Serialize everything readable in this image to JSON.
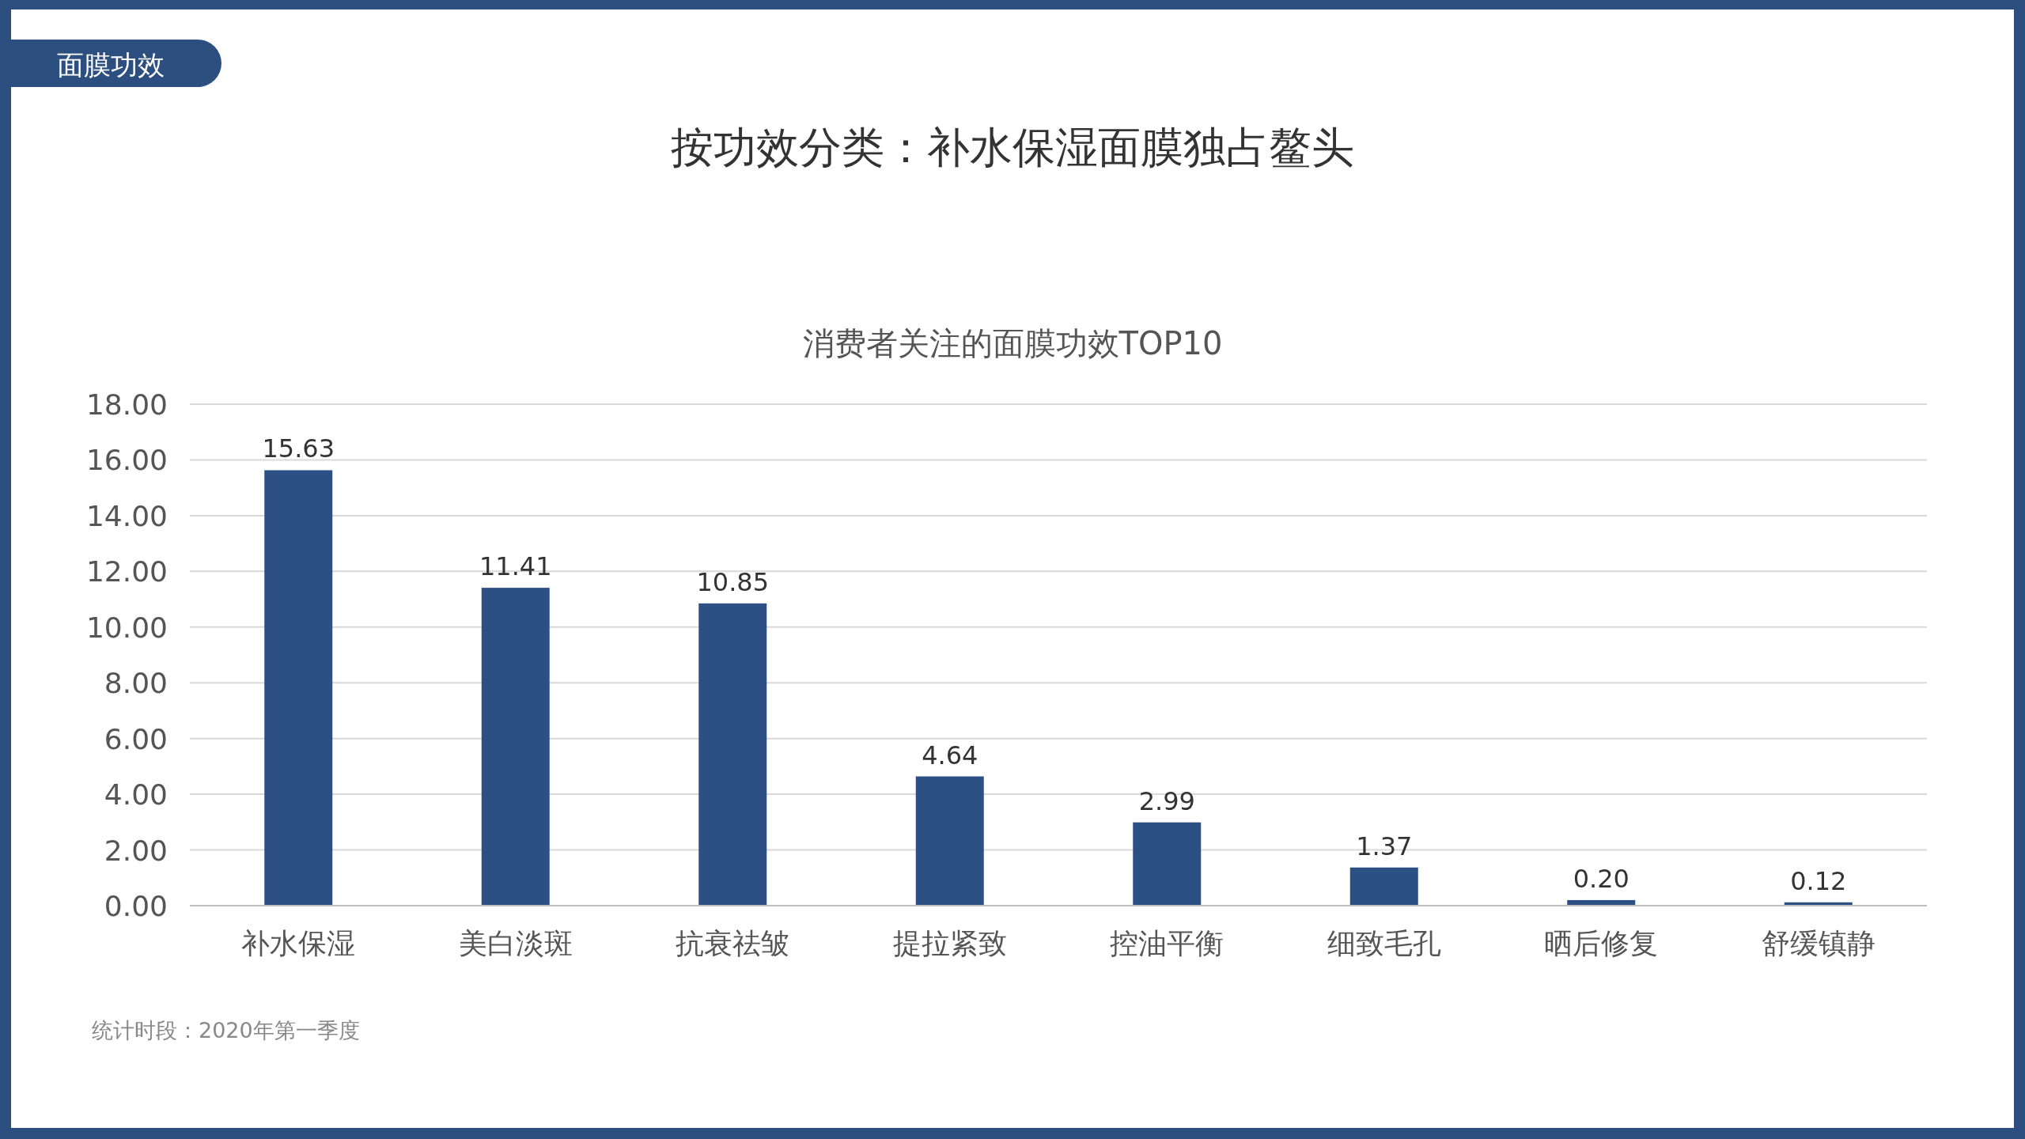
{
  "chart_data": {
    "type": "bar",
    "title": "按功效分类：补水保湿面膜独占鳌头",
    "subtitle": "消费者关注的面膜功效TOP10",
    "categories": [
      "补水保湿",
      "美白淡斑",
      "抗衰祛皱",
      "提拉紧致",
      "控油平衡",
      "细致毛孔",
      "晒后修复",
      "舒缓镇静"
    ],
    "values": [
      15.63,
      11.41,
      10.85,
      4.64,
      2.99,
      1.37,
      0.2,
      0.12
    ],
    "color": "#2d5084",
    "ylim": [
      0,
      18
    ],
    "yticks": [
      {
        "value": 0,
        "label": "0.00"
      },
      {
        "value": 2,
        "label": "2.00"
      },
      {
        "value": 4,
        "label": "4.00"
      },
      {
        "value": 6,
        "label": "6.00"
      },
      {
        "value": 8,
        "label": "8.00"
      },
      {
        "value": 10,
        "label": "10.00"
      },
      {
        "value": 12,
        "label": "12.00"
      },
      {
        "value": 14,
        "label": "14.00"
      },
      {
        "value": 16,
        "label": "16.00"
      },
      {
        "value": 18,
        "label": "18.00"
      }
    ],
    "grid": "y",
    "value_labels": [
      "15.63",
      "11.41",
      "10.85",
      "4.64",
      "2.99",
      "1.37",
      "0.20",
      "0.12"
    ],
    "annotations": [
      "面膜功效",
      "统计时段：2020年第一季度"
    ]
  }
}
